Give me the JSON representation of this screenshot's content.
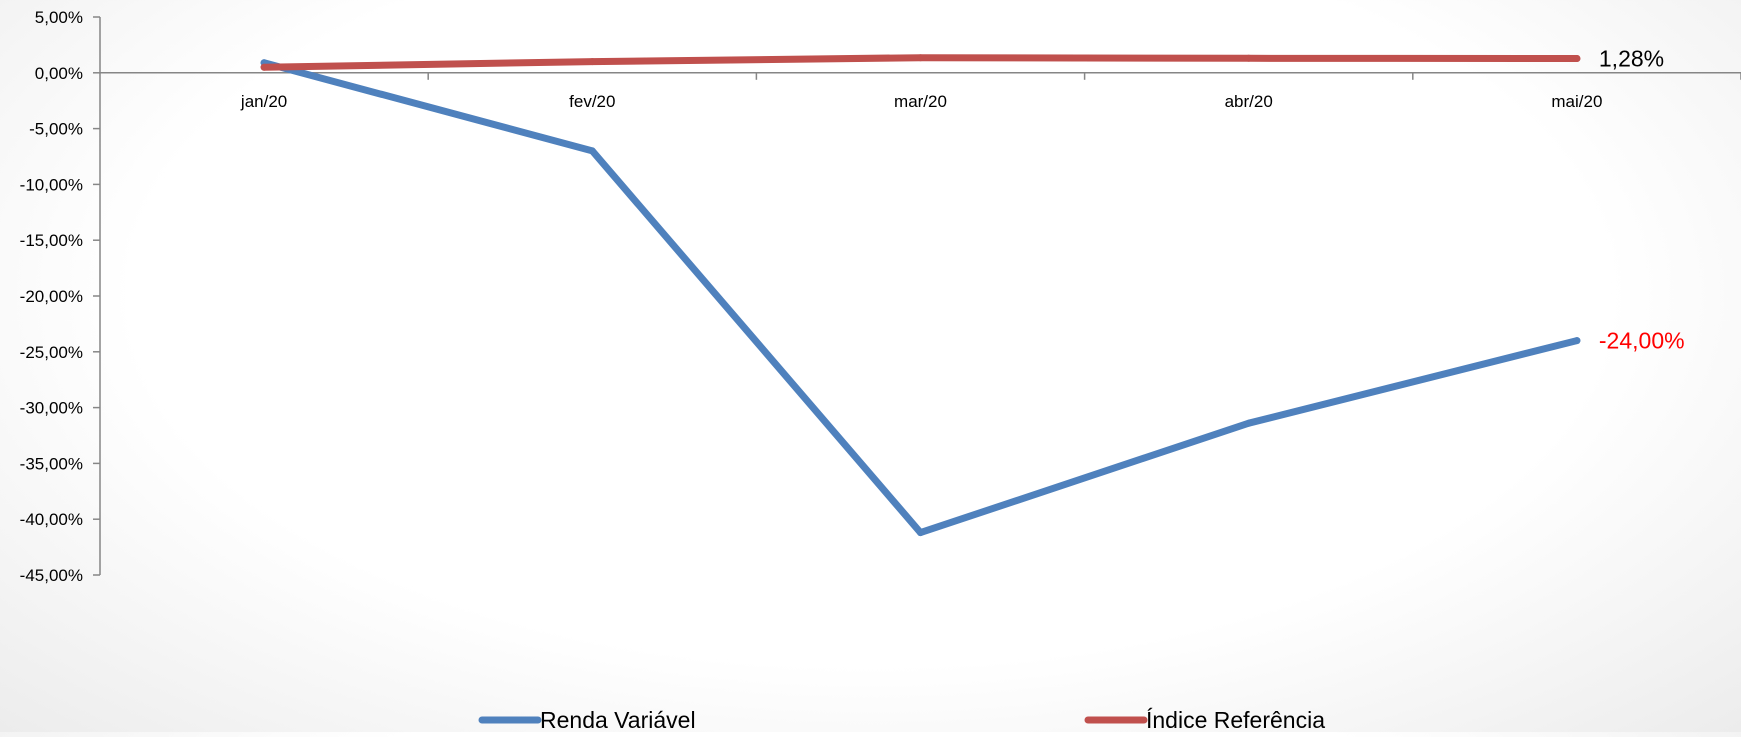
{
  "chart_data": {
    "type": "line",
    "categories": [
      "jan/20",
      "fev/20",
      "mar/20",
      "abr/20",
      "mai/20"
    ],
    "series": [
      {
        "name": "Renda Variável",
        "color": "#4f81bd",
        "values": [
          0.9,
          -7.0,
          -41.2,
          -31.4,
          -24.0
        ],
        "end_label": "-24,00%",
        "end_label_color": "#ff0000"
      },
      {
        "name": "Índice Referência",
        "color": "#c0504d",
        "values": [
          0.5,
          1.0,
          1.35,
          1.3,
          1.28
        ],
        "end_label": "1,28%",
        "end_label_color": "#000000"
      }
    ],
    "ylim": [
      -45,
      5
    ],
    "yticks": [
      5,
      0,
      -5,
      -10,
      -15,
      -20,
      -25,
      -30,
      -35,
      -40,
      -45
    ],
    "ytick_labels": [
      "5,00%",
      "0,00%",
      "-5,00%",
      "-10,00%",
      "-15,00%",
      "-20,00%",
      "-25,00%",
      "-30,00%",
      "-35,00%",
      "-40,00%",
      "-45,00%"
    ],
    "title": "",
    "xlabel": "",
    "ylabel": "",
    "grid": false,
    "legend_position": "bottom",
    "axis_color": "#868686"
  }
}
